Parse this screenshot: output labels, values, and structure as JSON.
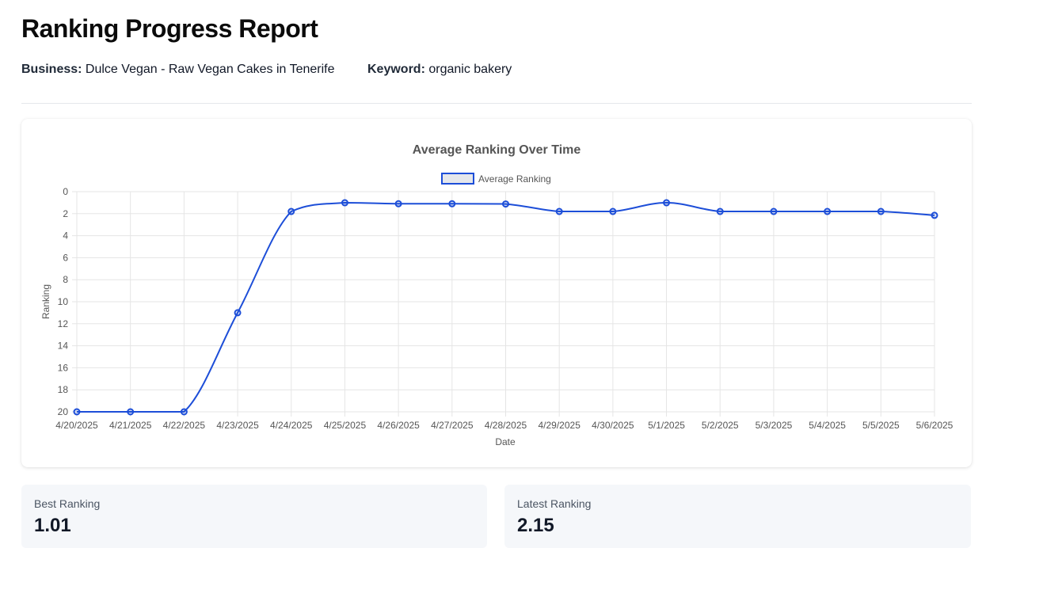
{
  "report": {
    "title": "Ranking Progress Report",
    "business_label": "Business:",
    "business_value": "Dulce Vegan - Raw Vegan Cakes in Tenerife",
    "keyword_label": "Keyword:",
    "keyword_value": "organic bakery"
  },
  "chart_data": {
    "type": "line",
    "title": "Average Ranking Over Time",
    "xlabel": "Date",
    "ylabel": "Ranking",
    "x": [
      "4/20/2025",
      "4/21/2025",
      "4/22/2025",
      "4/23/2025",
      "4/24/2025",
      "4/25/2025",
      "4/26/2025",
      "4/27/2025",
      "4/28/2025",
      "4/29/2025",
      "4/30/2025",
      "5/1/2025",
      "5/2/2025",
      "5/3/2025",
      "5/4/2025",
      "5/5/2025",
      "5/6/2025"
    ],
    "series": [
      {
        "name": "Average Ranking",
        "color": "#1d4ed8",
        "values": [
          20,
          20,
          20,
          11,
          1.8,
          1.01,
          1.1,
          1.1,
          1.12,
          1.8,
          1.8,
          1.01,
          1.8,
          1.8,
          1.8,
          1.8,
          2.15
        ]
      }
    ],
    "yticks": [
      0,
      2,
      4,
      6,
      8,
      10,
      12,
      14,
      16,
      18,
      20
    ],
    "ylim": [
      0,
      20
    ],
    "y_reversed": true,
    "grid": true,
    "legend": "top-center"
  },
  "stats": {
    "best_label": "Best Ranking",
    "best_value": "1.01",
    "latest_label": "Latest Ranking",
    "latest_value": "2.15"
  }
}
